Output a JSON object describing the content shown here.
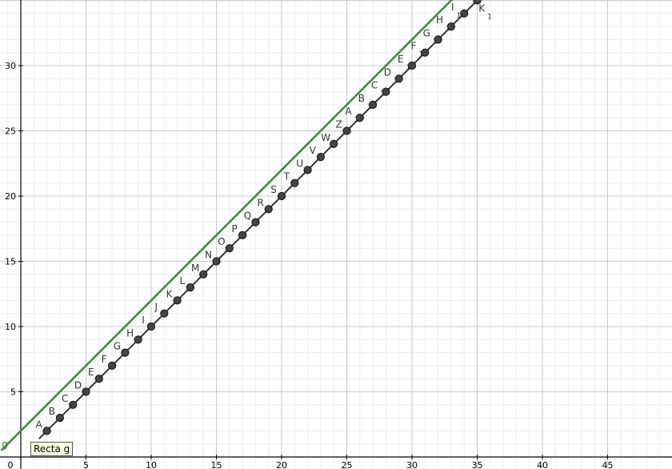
{
  "chart_data": {
    "type": "scatter",
    "x_ticks": [
      0,
      5,
      10,
      15,
      20,
      25,
      30,
      35,
      40,
      45
    ],
    "y_ticks": [
      5,
      10,
      15,
      20,
      25,
      30
    ],
    "xlim": [
      -1.5,
      50.2
    ],
    "ylim": [
      -0.6,
      35.3
    ],
    "grid": true,
    "colors": {
      "line_g": "#448844",
      "points": "#444444",
      "axes": "#000000"
    },
    "line_g": {
      "name": "g",
      "slope": 1,
      "intercept": 2
    },
    "points": [
      {
        "label": "A",
        "sub": "",
        "x": 2,
        "y": 2
      },
      {
        "label": "B",
        "sub": "",
        "x": 3,
        "y": 3
      },
      {
        "label": "C",
        "sub": "",
        "x": 4,
        "y": 4
      },
      {
        "label": "D",
        "sub": "",
        "x": 5,
        "y": 5
      },
      {
        "label": "E",
        "sub": "",
        "x": 6,
        "y": 6
      },
      {
        "label": "F",
        "sub": "",
        "x": 7,
        "y": 7
      },
      {
        "label": "G",
        "sub": "",
        "x": 8,
        "y": 8
      },
      {
        "label": "H",
        "sub": "",
        "x": 9,
        "y": 9
      },
      {
        "label": "I",
        "sub": "",
        "x": 10,
        "y": 10
      },
      {
        "label": "J",
        "sub": "",
        "x": 11,
        "y": 11
      },
      {
        "label": "K",
        "sub": "",
        "x": 12,
        "y": 12
      },
      {
        "label": "L",
        "sub": "",
        "x": 13,
        "y": 13
      },
      {
        "label": "M",
        "sub": "",
        "x": 14,
        "y": 14
      },
      {
        "label": "N",
        "sub": "",
        "x": 15,
        "y": 15
      },
      {
        "label": "O",
        "sub": "",
        "x": 16,
        "y": 16
      },
      {
        "label": "P",
        "sub": "",
        "x": 17,
        "y": 17
      },
      {
        "label": "Q",
        "sub": "",
        "x": 18,
        "y": 18
      },
      {
        "label": "R",
        "sub": "",
        "x": 19,
        "y": 19
      },
      {
        "label": "S",
        "sub": "",
        "x": 20,
        "y": 20
      },
      {
        "label": "T",
        "sub": "",
        "x": 21,
        "y": 21
      },
      {
        "label": "U",
        "sub": "",
        "x": 22,
        "y": 22
      },
      {
        "label": "V",
        "sub": "",
        "x": 23,
        "y": 23
      },
      {
        "label": "W",
        "sub": "",
        "x": 24,
        "y": 24
      },
      {
        "label": "Z",
        "sub": "",
        "x": 25,
        "y": 25
      },
      {
        "label": "A",
        "sub": "1",
        "x": 26,
        "y": 26
      },
      {
        "label": "B",
        "sub": "1",
        "x": 27,
        "y": 27
      },
      {
        "label": "C",
        "sub": "1",
        "x": 28,
        "y": 28
      },
      {
        "label": "D",
        "sub": "1",
        "x": 29,
        "y": 29
      },
      {
        "label": "E",
        "sub": "1",
        "x": 30,
        "y": 30
      },
      {
        "label": "F",
        "sub": "1",
        "x": 31,
        "y": 31
      },
      {
        "label": "G",
        "sub": "1",
        "x": 32,
        "y": 32
      },
      {
        "label": "H",
        "sub": "1",
        "x": 33,
        "y": 33
      },
      {
        "label": "I",
        "sub": "1",
        "x": 34,
        "y": 34
      },
      {
        "label": "K",
        "sub": "1",
        "x": 35,
        "y": 35
      }
    ],
    "annotations": {
      "origin_label": "0",
      "line_label": "g",
      "tooltip": "Recta g"
    }
  }
}
